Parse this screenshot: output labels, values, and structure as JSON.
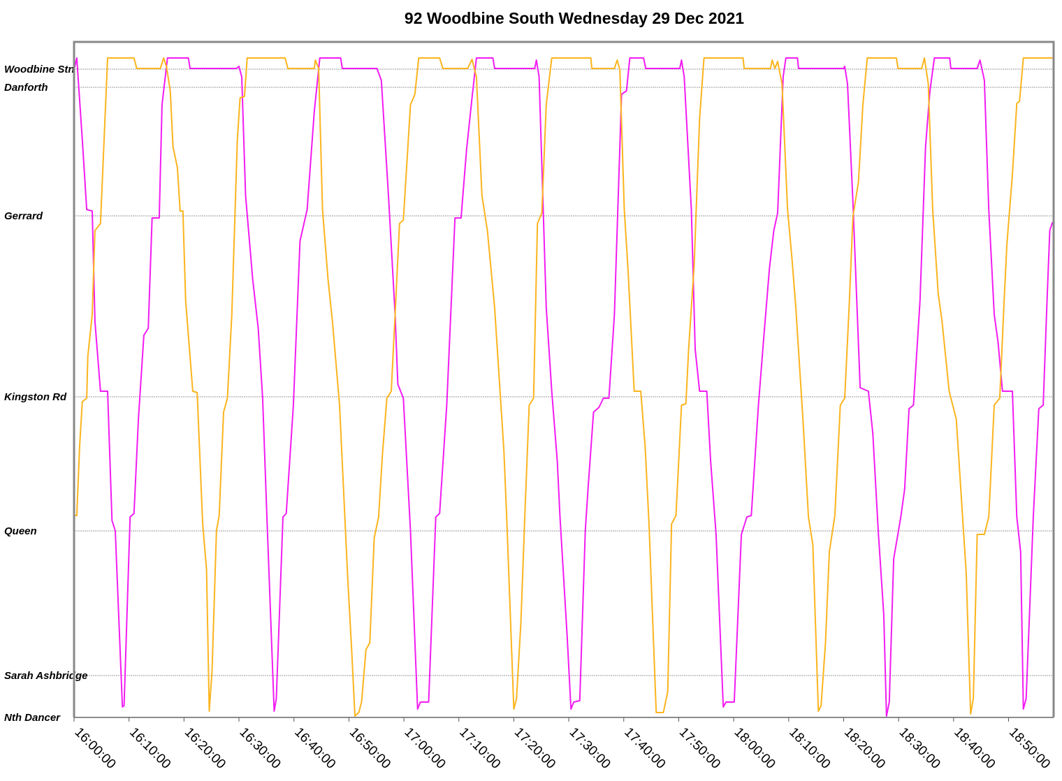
{
  "chart_data": {
    "type": "line",
    "title": "92 Woodbine South Wednesday 29 Dec 2021",
    "xlim": [
      0,
      178.2
    ],
    "ylim": [
      0,
      967
    ],
    "grid": true,
    "xticks": [
      {
        "value": 0,
        "label": "16:00:00"
      },
      {
        "value": 10,
        "label": "16:10:00"
      },
      {
        "value": 20,
        "label": "16:20:00"
      },
      {
        "value": 30,
        "label": "16:30:00"
      },
      {
        "value": 40,
        "label": "16:40:00"
      },
      {
        "value": 50,
        "label": "16:50:00"
      },
      {
        "value": 60,
        "label": "17:00:00"
      },
      {
        "value": 70,
        "label": "17:10:00"
      },
      {
        "value": 80,
        "label": "17:20:00"
      },
      {
        "value": 90,
        "label": "17:30:00"
      },
      {
        "value": 100,
        "label": "17:40:00"
      },
      {
        "value": 110,
        "label": "17:50:00"
      },
      {
        "value": 120,
        "label": "18:00:00"
      },
      {
        "value": 130,
        "label": "18:10:00"
      },
      {
        "value": 140,
        "label": "18:20:00"
      },
      {
        "value": 150,
        "label": "18:30:00"
      },
      {
        "value": 160,
        "label": "18:40:00"
      },
      {
        "value": 170,
        "label": "18:50:00"
      }
    ],
    "yticks": [
      {
        "value": 0,
        "label": "Nth Dancer"
      },
      {
        "value": 60,
        "label": "Sarah Ashbridge"
      },
      {
        "value": 267,
        "label": "Queen"
      },
      {
        "value": 459,
        "label": "Kingston Rd"
      },
      {
        "value": 718,
        "label": "Gerrard"
      },
      {
        "value": 902,
        "label": "Danforth"
      },
      {
        "value": 928,
        "label": "Woodbine Stn"
      }
    ],
    "series": [
      {
        "color": "#f21cf2",
        "x": [
          0,
          0.5,
          1.5,
          2.3,
          3.3,
          3.8,
          4.8,
          6.1,
          6.9,
          7.5,
          8.8,
          9.1,
          10.2,
          10.9,
          11.7,
          12.7,
          13.5,
          14.2,
          15.5,
          16.0,
          17.0,
          20.8,
          21.1,
          29.5,
          30.0,
          30.5,
          31.2,
          32.5,
          33.5,
          34.3,
          35.1,
          36.4,
          36.8,
          38.0,
          38.6,
          39.9,
          41.1,
          42.4,
          43.7,
          44.7,
          48.5,
          48.8,
          55.1,
          55.9,
          57.2,
          58.4,
          58.9,
          59.9,
          61.2,
          62.5,
          63.0,
          64.5,
          65.8,
          66.5,
          67.8,
          69.3,
          70.4,
          71.4,
          72.4,
          73.2,
          76.2,
          76.5,
          83.8,
          84.1,
          84.6,
          85.9,
          86.9,
          87.9,
          88.4,
          89.7,
          90.4,
          90.9,
          92.0,
          93.0,
          93.5,
          94.5,
          95.5,
          96.3,
          97.3,
          98.3,
          99.6,
          100.5,
          101.1,
          103.6,
          104.0,
          110.2,
          110.5,
          111.0,
          112.3,
          113.0,
          113.8,
          115.1,
          115.8,
          116.8,
          118.1,
          118.6,
          120.1,
          121.4,
          122.4,
          123.2,
          124.5,
          125.5,
          126.5,
          127.3,
          128.0,
          129.0,
          129.5,
          131.6,
          131.8,
          140.0,
          140.2,
          140.7,
          141.7,
          143.0,
          144.5,
          145.3,
          146.3,
          147.3,
          147.8,
          148.3,
          149.1,
          150.4,
          151.1,
          151.9,
          152.7,
          153.9,
          154.9,
          155.7,
          156.5,
          159.3,
          159.5,
          164.3,
          164.8,
          165.6,
          166.4,
          167.4,
          168.1,
          168.9,
          170.7,
          171.5,
          172.2,
          172.7,
          173.2,
          174.0,
          174.5,
          175.5,
          176.3,
          177.0,
          177.5,
          178.0
        ],
        "values": [
          927,
          944,
          827,
          727,
          725,
          567,
          467,
          467,
          282,
          267,
          15,
          17,
          287,
          292,
          427,
          547,
          557,
          715,
          715,
          877,
          944,
          944,
          929,
          929,
          932,
          917,
          747,
          627,
          557,
          457,
          282,
          9,
          27,
          287,
          292,
          447,
          682,
          727,
          867,
          944,
          944,
          929,
          929,
          912,
          747,
          577,
          477,
          457,
          267,
          12,
          22,
          22,
          287,
          292,
          447,
          715,
          715,
          812,
          887,
          944,
          944,
          929,
          929,
          941,
          917,
          587,
          467,
          367,
          287,
          117,
          12,
          22,
          24,
          267,
          327,
          437,
          444,
          457,
          457,
          577,
          892,
          897,
          944,
          944,
          929,
          929,
          941,
          917,
          727,
          527,
          467,
          467,
          367,
          262,
          15,
          22,
          22,
          262,
          287,
          289,
          447,
          547,
          642,
          697,
          722,
          917,
          944,
          944,
          929,
          929,
          932,
          907,
          737,
          472,
          467,
          407,
          267,
          147,
          2,
          22,
          227,
          287,
          327,
          442,
          447,
          597,
          817,
          897,
          944,
          944,
          929,
          929,
          941,
          912,
          727,
          577,
          537,
          467,
          467,
          287,
          237,
          12,
          27,
          187,
          287,
          442,
          447,
          597,
          697,
          709
        ]
      },
      {
        "color": "#fbb41e",
        "x": [
          0,
          0.5,
          1.0,
          1.5,
          2.3,
          2.5,
          3.3,
          3.8,
          4.8,
          5.3,
          6.1,
          10.9,
          11.4,
          15.7,
          16.3,
          16.8,
          17.5,
          18.0,
          18.8,
          19.3,
          19.8,
          20.3,
          20.8,
          21.6,
          22.4,
          23.4,
          24.1,
          24.6,
          25.1,
          25.9,
          26.4,
          27.2,
          27.9,
          28.7,
          29.7,
          30.2,
          31.0,
          31.5,
          38.4,
          38.9,
          43.7,
          43.9,
          44.5,
          45.2,
          46.2,
          47.0,
          48.3,
          49.8,
          50.5,
          51.1,
          51.8,
          52.3,
          53.1,
          53.8,
          54.6,
          55.4,
          56.1,
          56.9,
          57.7,
          58.4,
          59.2,
          59.9,
          61.2,
          62.0,
          62.7,
          66.5,
          67.1,
          71.6,
          72.4,
          73.2,
          74.2,
          75.2,
          76.5,
          77.5,
          78.2,
          78.7,
          80.0,
          80.5,
          81.3,
          82.0,
          82.8,
          83.6,
          84.3,
          85.1,
          85.9,
          86.9,
          94.0,
          94.2,
          98.3,
          98.8,
          99.3,
          100.1,
          100.8,
          101.9,
          103.1,
          103.9,
          104.6,
          105.9,
          107.2,
          108.0,
          108.7,
          109.5,
          110.5,
          111.3,
          111.8,
          112.8,
          113.8,
          114.6,
          121.7,
          121.9,
          126.7,
          127.0,
          127.5,
          128.0,
          128.8,
          129.8,
          130.6,
          131.3,
          132.6,
          133.6,
          134.4,
          135.4,
          135.9,
          136.7,
          137.4,
          138.4,
          139.4,
          140.2,
          141.0,
          141.7,
          142.7,
          143.5,
          144.3,
          149.6,
          149.9,
          154.2,
          154.7,
          155.4,
          156.2,
          157.2,
          157.9,
          159.2,
          160.5,
          161.8,
          162.3,
          163.1,
          163.6,
          164.3,
          165.6,
          166.4,
          167.4,
          168.4,
          169.2,
          169.7,
          170.7,
          171.5,
          172.0,
          172.7,
          178.0
        ],
        "values": [
          289,
          289,
          387,
          452,
          457,
          517,
          577,
          697,
          707,
          797,
          944,
          944,
          929,
          929,
          944,
          932,
          897,
          817,
          787,
          725,
          725,
          597,
          547,
          467,
          465,
          277,
          212,
          9,
          67,
          267,
          289,
          437,
          457,
          577,
          827,
          887,
          889,
          944,
          944,
          929,
          929,
          941,
          929,
          727,
          627,
          567,
          447,
          197,
          97,
          2,
          7,
          22,
          97,
          107,
          257,
          287,
          377,
          457,
          467,
          577,
          707,
          712,
          877,
          892,
          944,
          944,
          929,
          929,
          942,
          917,
          747,
          697,
          587,
          467,
          382,
          287,
          12,
          27,
          137,
          287,
          447,
          457,
          707,
          722,
          877,
          944,
          944,
          929,
          929,
          941,
          927,
          727,
          637,
          467,
          467,
          387,
          277,
          7,
          7,
          37,
          277,
          289,
          447,
          449,
          527,
          647,
          857,
          944,
          944,
          929,
          929,
          941,
          929,
          939,
          907,
          727,
          657,
          587,
          427,
          287,
          247,
          9,
          17,
          107,
          237,
          289,
          447,
          457,
          587,
          717,
          767,
          877,
          944,
          944,
          929,
          929,
          944,
          907,
          727,
          607,
          567,
          467,
          427,
          267,
          207,
          5,
          27,
          262,
          262,
          287,
          447,
          457,
          597,
          677,
          777,
          879,
          882,
          944,
          944
        ]
      }
    ]
  }
}
